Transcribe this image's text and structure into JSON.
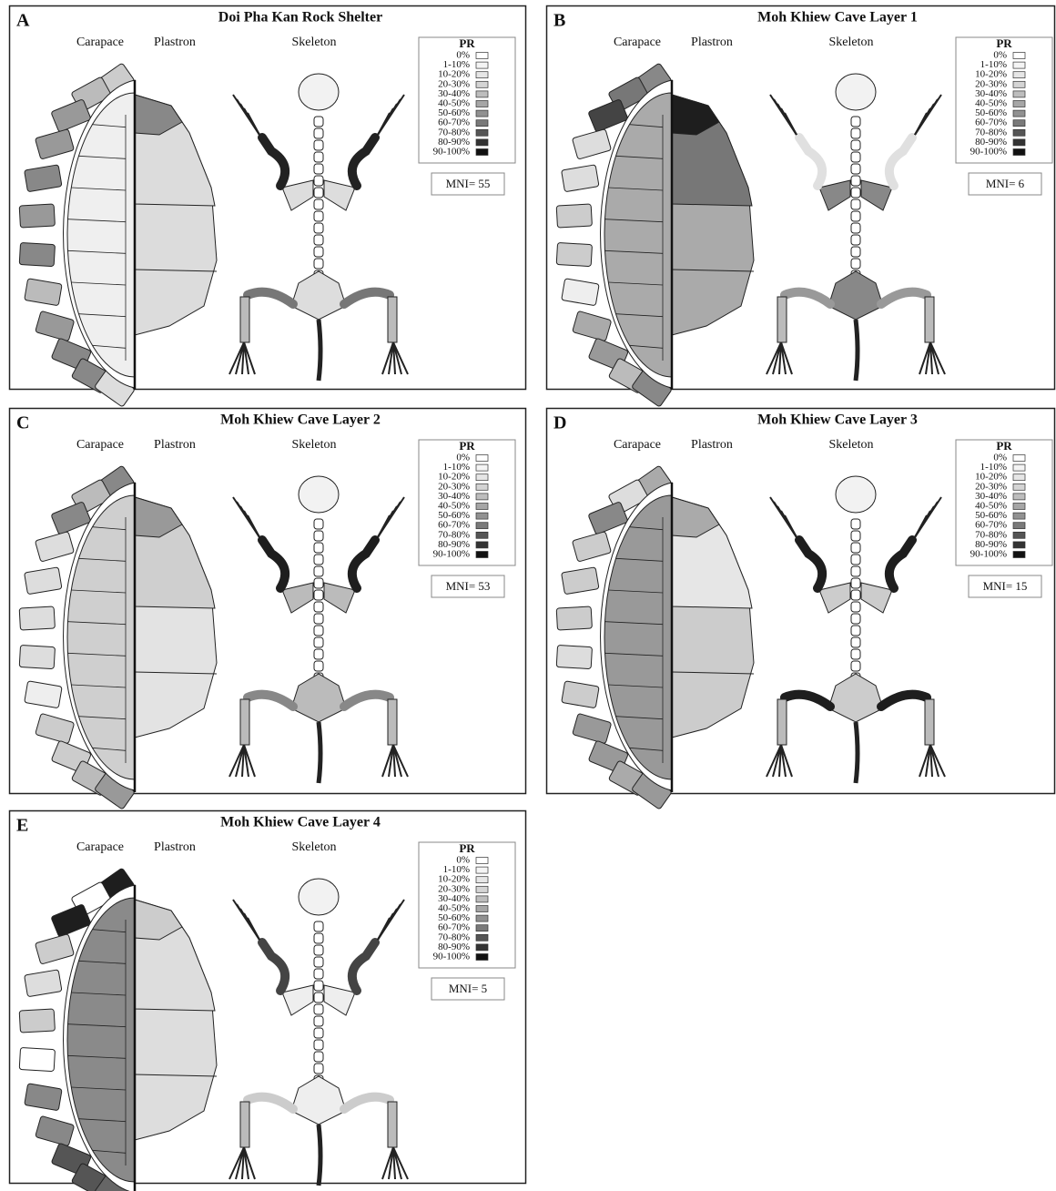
{
  "panels": [
    {
      "letter": "A",
      "title": "Doi Pha Kan Rock Shelter",
      "columns": [
        "Carapace",
        "Plastron",
        "Skeleton"
      ],
      "legend_title": "PR",
      "legend": [
        "0%",
        "1-10%",
        "10-20%",
        "20-30%",
        "30-40%",
        "40-50%",
        "50-60%",
        "60-70%",
        "70-80%",
        "80-90%",
        "90-100%"
      ],
      "mni": "MNI= 55"
    },
    {
      "letter": "B",
      "title": "Moh Khiew Cave Layer 1",
      "columns": [
        "Carapace",
        "Plastron",
        "Skeleton"
      ],
      "legend_title": "PR",
      "legend": [
        "0%",
        "1-10%",
        "10-20%",
        "20-30%",
        "30-40%",
        "40-50%",
        "50-60%",
        "60-70%",
        "70-80%",
        "80-90%",
        "90-100%"
      ],
      "mni": "MNI= 6"
    },
    {
      "letter": "C",
      "title": "Moh Khiew Cave Layer 2",
      "columns": [
        "Carapace",
        "Plastron",
        "Skeleton"
      ],
      "legend_title": "PR",
      "legend": [
        "0%",
        "1-10%",
        "10-20%",
        "20-30%",
        "30-40%",
        "40-50%",
        "50-60%",
        "60-70%",
        "70-80%",
        "80-90%",
        "90-100%"
      ],
      "mni": "MNI= 53"
    },
    {
      "letter": "D",
      "title": "Moh Khiew Cave Layer 3",
      "columns": [
        "Carapace",
        "Plastron",
        "Skeleton"
      ],
      "legend_title": "PR",
      "legend": [
        "0%",
        "1-10%",
        "10-20%",
        "20-30%",
        "30-40%",
        "40-50%",
        "50-60%",
        "60-70%",
        "70-80%",
        "80-90%",
        "90-100%"
      ],
      "mni": "MNI= 15"
    },
    {
      "letter": "E",
      "title": "Moh Khiew Cave Layer 4",
      "columns": [
        "Carapace",
        "Plastron",
        "Skeleton"
      ],
      "legend_title": "PR",
      "legend": [
        "0%",
        "1-10%",
        "10-20%",
        "20-30%",
        "30-40%",
        "40-50%",
        "50-60%",
        "60-70%",
        "70-80%",
        "80-90%",
        "90-100%"
      ],
      "mni": "MNI= 5"
    }
  ]
}
